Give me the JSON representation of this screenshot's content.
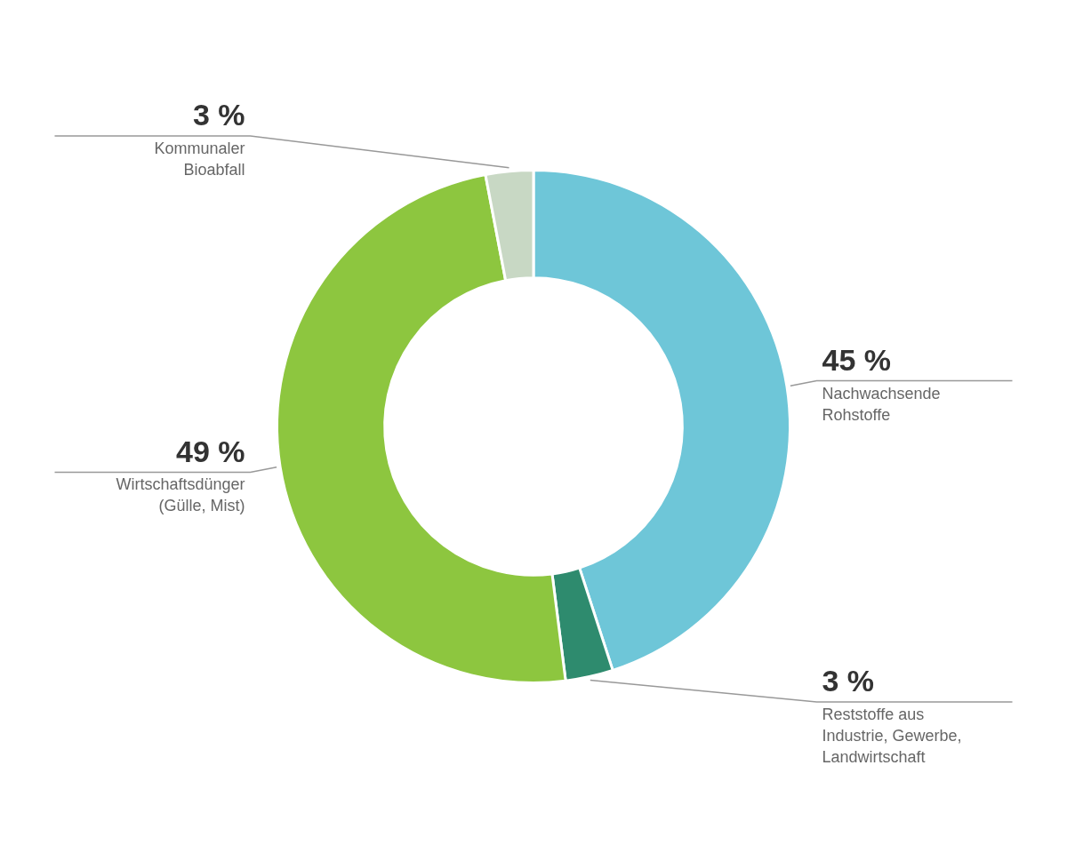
{
  "chart_data": {
    "type": "doughnut",
    "categories": [
      "Nachwachsende\nRohstoffe",
      "Reststoffe aus\nIndustrie, Gewerbe,\nLandwirtschaft",
      "Wirtschaftsdünger\n(Gülle, Mist)",
      "Kommunaler\nBioabfall"
    ],
    "values": [
      45,
      3,
      49,
      3
    ],
    "value_labels": [
      "45 %",
      "3 %",
      "49 %",
      "3 %"
    ],
    "colors": [
      "#6ec6d8",
      "#2e8b6e",
      "#8dc63f",
      "#c8d8c4"
    ],
    "data_labels": true
  }
}
